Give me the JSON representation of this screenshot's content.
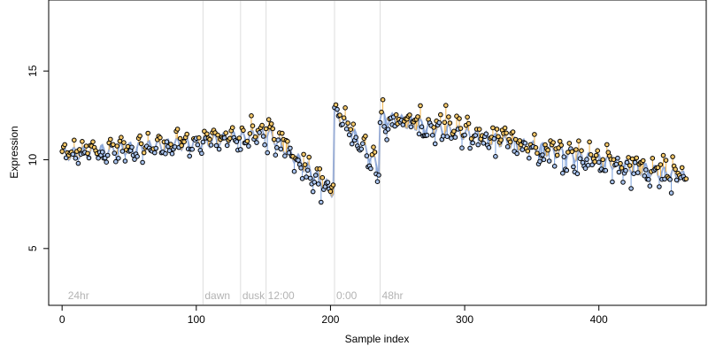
{
  "chart_data": {
    "type": "scatter",
    "xlabel": "Sample index",
    "ylabel": "Expression",
    "xlim": [
      -10,
      480
    ],
    "ylim": [
      1.8,
      19.0
    ],
    "x_ticks": [
      0,
      100,
      200,
      300,
      400
    ],
    "y_ticks": [
      5,
      10,
      15
    ],
    "markers": [
      {
        "x": 3,
        "label": "24hr"
      },
      {
        "x": 105,
        "label": "dawn"
      },
      {
        "x": 133,
        "label": "dusk"
      },
      {
        "x": 152,
        "label": "12:00"
      },
      {
        "x": 203,
        "label": "0:00"
      },
      {
        "x": 237,
        "label": "48hr"
      }
    ],
    "segments": [
      {
        "x": [
          0,
          104
        ],
        "start": 10.3,
        "end": 11.0,
        "amp": 0.55
      },
      {
        "x": [
          105,
          132
        ],
        "start": 11.0,
        "end": 11.3,
        "amp": 0.45
      },
      {
        "x": [
          133,
          151
        ],
        "start": 11.2,
        "end": 11.5,
        "amp": 0.45
      },
      {
        "x": [
          152,
          202
        ],
        "start": 11.6,
        "end": 8.2,
        "amp": 0.7
      },
      {
        "x": [
          203,
          236
        ],
        "start": 12.8,
        "end": 9.6,
        "amp": 0.6
      },
      {
        "x": [
          237,
          465
        ],
        "start": 12.4,
        "end": 9.0,
        "amp": 0.75
      }
    ],
    "sample_count": 466
  }
}
